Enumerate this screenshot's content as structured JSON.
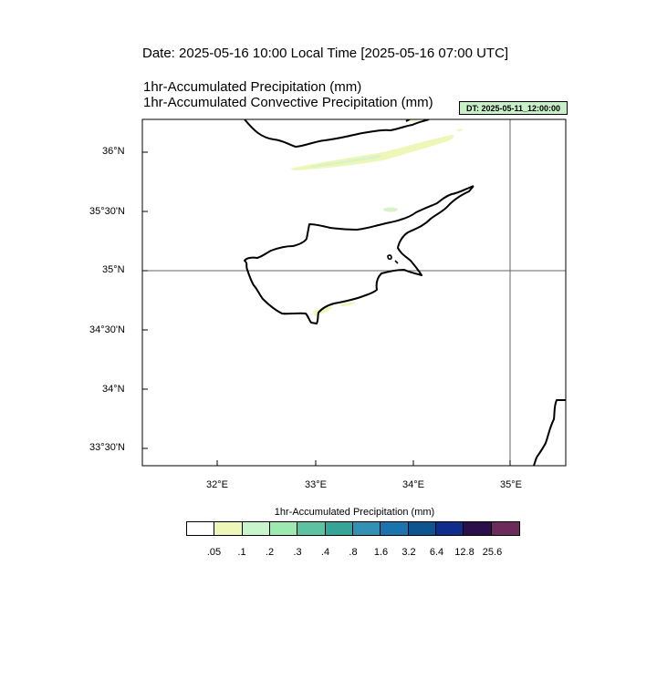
{
  "header": {
    "date_line": "Date: 2025-05-16  10:00 Local Time [2025-05-16  07:00 UTC]",
    "var_line_1": "1hr-Accumulated Precipitation   (mm)",
    "var_line_2": "1hr-Accumulated Convective Precipitation   (mm)",
    "dt_badge": "DT: 2025-05-11_12:00:00"
  },
  "map": {
    "lat_labels": [
      "36°N",
      "35°30'N",
      "35°N",
      "34°30'N",
      "34°N",
      "33°30'N"
    ],
    "lon_labels": [
      "32°E",
      "33°E",
      "34°E",
      "35°E"
    ],
    "land_color": "#ffffff",
    "coast_color": "#000000",
    "precip_color": "#eef7b8",
    "precip_color_2": "#d8f3c8"
  },
  "legend": {
    "title": "1hr-Accumulated Precipitation  (mm)",
    "colors": [
      "#ffffff",
      "#eef7b8",
      "#c9f5cc",
      "#9deab0",
      "#5cc2a2",
      "#36a598",
      "#3391b5",
      "#1a74b0",
      "#0d5590",
      "#0f2d8c",
      "#2b0f4a",
      "#6b2c5c"
    ],
    "ticks": [
      ".05",
      ".1",
      ".2",
      ".3",
      ".4",
      ".8",
      "1.6",
      "3.2",
      "6.4",
      "12.8",
      "25.6"
    ]
  }
}
